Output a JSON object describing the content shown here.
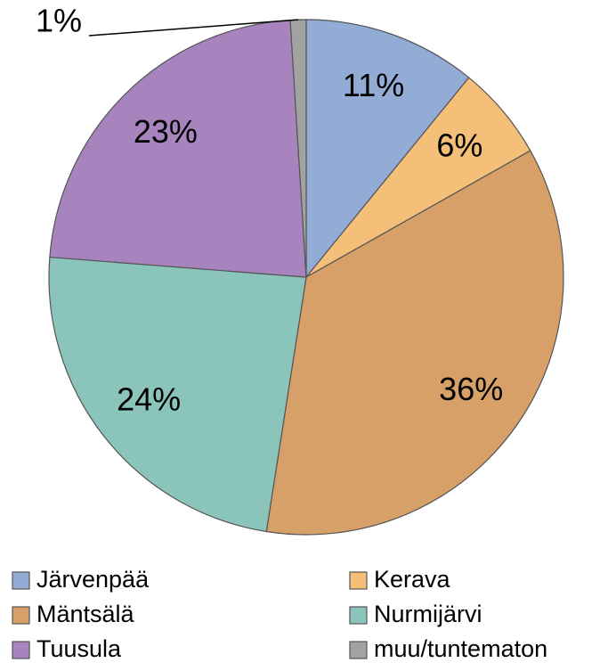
{
  "chart_data": {
    "type": "pie",
    "categories": [
      "Järvenpää",
      "Kerava",
      "Mäntsälä",
      "Nurmijärvi",
      "Tuusula",
      "muu/tuntematon"
    ],
    "values": [
      11,
      6,
      36,
      24,
      23,
      1
    ],
    "value_labels": [
      "11%",
      "6%",
      "36%",
      "24%",
      "23%",
      "1%"
    ],
    "colors": [
      "#93acd6",
      "#f4bf78",
      "#d7a068",
      "#8ac4ba",
      "#a884bf",
      "#a2a2a2"
    ],
    "legend": "bottom"
  }
}
